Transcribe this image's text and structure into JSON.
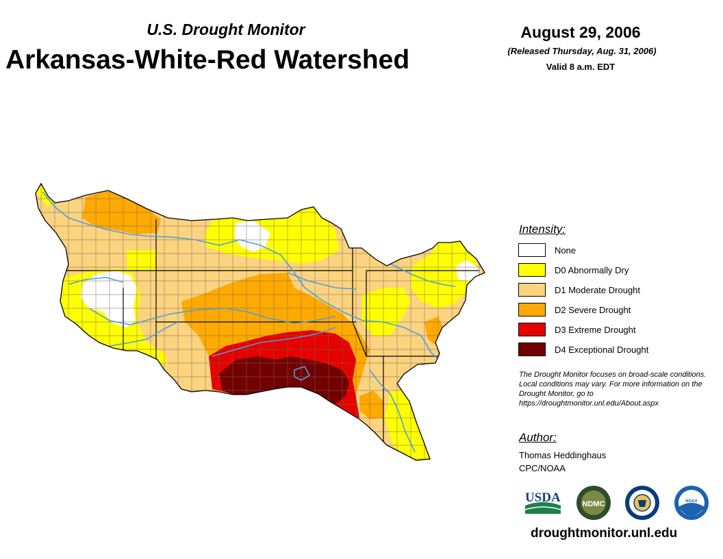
{
  "header": {
    "supertitle": "U.S. Drought Monitor",
    "title": "Arkansas-White-Red Watershed",
    "date": "August 29, 2006",
    "released": "(Released Thursday, Aug. 31, 2006)",
    "valid": "Valid 8 a.m. EDT"
  },
  "legend": {
    "title": "Intensity:",
    "items": [
      {
        "label": "None",
        "color": "#ffffff"
      },
      {
        "label": "D0 Abnormally Dry",
        "color": "#ffff00"
      },
      {
        "label": "D1 Moderate Drought",
        "color": "#fcd37f"
      },
      {
        "label": "D2 Severe Drought",
        "color": "#ffaa00"
      },
      {
        "label": "D3 Extreme Drought",
        "color": "#e60000"
      },
      {
        "label": "D4 Exceptional Drought",
        "color": "#730000"
      }
    ]
  },
  "note": "The Drought Monitor focuses on broad-scale conditions. Local conditions may vary. For more information on the Drought Monitor, go to https://droughtmonitor.unl.edu/About.aspx",
  "author": {
    "title": "Author:",
    "name": "Thomas Heddinghaus",
    "org": "CPC/NOAA"
  },
  "logos": {
    "usda": "USDA",
    "ndmc": "NDMC",
    "doc_icon": "department-of-commerce-seal-icon",
    "noaa": "NOAA"
  },
  "footer_url": "droughtmonitor.unl.edu",
  "colors": {
    "river": "#4a9fe0",
    "boundary": "#000000",
    "county_lines": "#7a6a50"
  }
}
